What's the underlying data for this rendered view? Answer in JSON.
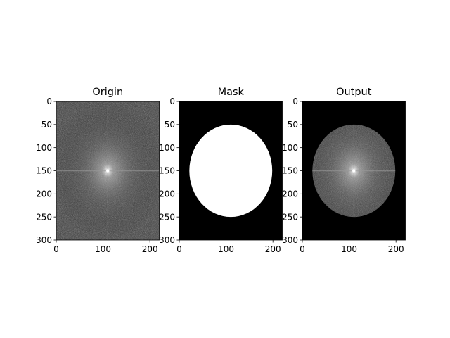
{
  "chart_data": [
    {
      "type": "heatmap",
      "title": "Origin",
      "image": "fft-magnitude-spectrum",
      "colormap": "gray",
      "image_size": [
        220,
        300
      ],
      "center": [
        110,
        150
      ],
      "xticks": [
        0,
        100,
        200
      ],
      "yticks": [
        0,
        50,
        100,
        150,
        200,
        250,
        300
      ],
      "xlim": [
        0,
        220
      ],
      "ylim": [
        300,
        0
      ]
    },
    {
      "type": "heatmap",
      "title": "Mask",
      "image": "circular-mask",
      "colormap": "gray",
      "image_size": [
        220,
        300
      ],
      "mask_center": [
        110,
        150
      ],
      "mask_radius": 100,
      "xticks": [
        0,
        100,
        200
      ],
      "yticks": [
        0,
        50,
        100,
        150,
        200,
        250,
        300
      ],
      "xlim": [
        0,
        220
      ],
      "ylim": [
        300,
        0
      ]
    },
    {
      "type": "heatmap",
      "title": "Output",
      "image": "masked-fft-spectrum",
      "colormap": "gray",
      "image_size": [
        220,
        300
      ],
      "mask_center": [
        110,
        150
      ],
      "mask_radius": 100,
      "xticks": [
        0,
        100,
        200
      ],
      "yticks": [
        0,
        50,
        100,
        150,
        200,
        250,
        300
      ],
      "xlim": [
        0,
        220
      ],
      "ylim": [
        300,
        0
      ]
    }
  ]
}
